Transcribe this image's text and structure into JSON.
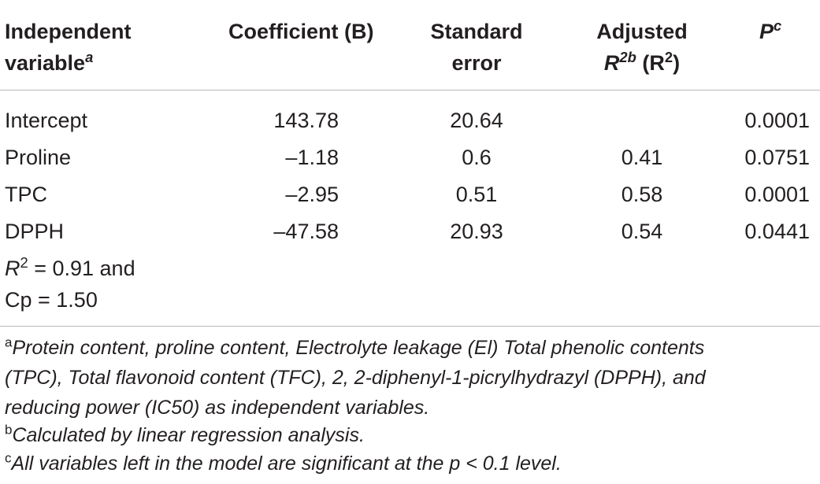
{
  "header": {
    "col1_line1": "Independent",
    "col1_line2": "variable",
    "col1_sup": "a",
    "col2": "Coefficient (B)",
    "col3_line1": "Standard",
    "col3_line2": "error",
    "col4_line1": "Adjusted",
    "col4_r": "R",
    "col4_sup": "2b",
    "col4_paren": "(R",
    "col4_paren_sup": "2",
    "col4_paren_close": ")",
    "col5": "P",
    "col5_sup": "c"
  },
  "rows": [
    {
      "variable": "Intercept",
      "coefficient": "143.78",
      "std_error": "20.64",
      "adj_r2": "",
      "p": "0.0001"
    },
    {
      "variable": "Proline",
      "coefficient": "–1.18",
      "std_error": "0.6",
      "adj_r2": "0.41",
      "p": "0.0751"
    },
    {
      "variable": "TPC",
      "coefficient": "–2.95",
      "std_error": "0.51",
      "adj_r2": "0.58",
      "p": "0.0001"
    },
    {
      "variable": "DPPH",
      "coefficient": "–47.58",
      "std_error": "20.93",
      "adj_r2": "0.54",
      "p": "0.0441"
    }
  ],
  "summary": {
    "r_symbol": "R",
    "r_sup": "2",
    "line1_rest": " = 0.91 and",
    "line2": "Cp = 1.50"
  },
  "footnotes": {
    "a_mark": "a",
    "a_line1": "Protein content, proline content, Electrolyte leakage (El) Total phenolic contents",
    "a_line2": "(TPC), Total flavonoid content (TFC), 2, 2-diphenyl-1-picrylhydrazyl (DPPH), and",
    "a_line3": "reducing power (IC50) as independent variables.",
    "b_mark": "b",
    "b_text": "Calculated by linear regression analysis.",
    "c_mark": "c",
    "c_text": "All variables left in the model are significant at the p < 0.1 level."
  }
}
